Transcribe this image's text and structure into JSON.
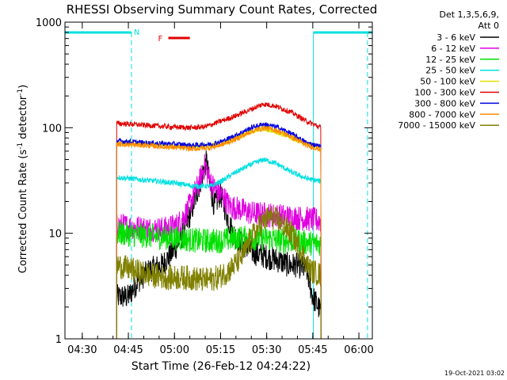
{
  "chart_data": {
    "type": "line",
    "title": "RHESSI Observing Summary Count Rates, Corrected",
    "xlabel": "Start Time (26-Feb-12 04:24:22)",
    "ylabel_main": "Corrected Count Rate (s",
    "ylabel_sup1": "-1",
    "ylabel_mid": " detector",
    "ylabel_sup2": "-1",
    "ylabel_end": ")",
    "y_scale": "log",
    "ylim": [
      1,
      1000
    ],
    "xlim_minutes": [
      264.37,
      364.37
    ],
    "x_ticks": [
      {
        "label": "04:30",
        "min": 270
      },
      {
        "label": "04:45",
        "min": 285
      },
      {
        "label": "05:00",
        "min": 300
      },
      {
        "label": "05:15",
        "min": 315
      },
      {
        "label": "05:30",
        "min": 330
      },
      {
        "label": "05:45",
        "min": 345
      },
      {
        "label": "06:00",
        "min": 360
      }
    ],
    "y_ticks": [
      {
        "label": "1",
        "value": 1
      },
      {
        "label": "10",
        "value": 10
      },
      {
        "label": "100",
        "value": 100
      },
      {
        "label": "1000",
        "value": 1000
      }
    ],
    "legend_header": [
      "Det 1,3,5,6,9,",
      "Att 0"
    ],
    "legend_position": "right",
    "annotations": {
      "night_label": "N",
      "flare_label": "F",
      "date_stamp": "19-Oct-2021 03:02",
      "night_color": "#00e0e0",
      "flare_color": "#e00000",
      "night_intervals_min": [
        [
          264.37,
          286.0
        ],
        [
          345.2,
          364.37
        ]
      ],
      "night_dashed_min": [
        286.0,
        362.8
      ],
      "flare_interval_min": [
        298.0,
        305.0
      ]
    },
    "data_interval_min": [
      281.2,
      347.7
    ],
    "series": [
      {
        "name": "3 - 6 keV",
        "color": "#000000",
        "points": [
          [
            281.2,
            2.5
          ],
          [
            285,
            2.5
          ],
          [
            288,
            3.5
          ],
          [
            292,
            4.5
          ],
          [
            296,
            5
          ],
          [
            300,
            7
          ],
          [
            303,
            10
          ],
          [
            306,
            18
          ],
          [
            308,
            28
          ],
          [
            309.5,
            40
          ],
          [
            310.5,
            48
          ],
          [
            311.5,
            28
          ],
          [
            313,
            18
          ],
          [
            315,
            24
          ],
          [
            317,
            15
          ],
          [
            319,
            10
          ],
          [
            322,
            8
          ],
          [
            326,
            6.5
          ],
          [
            330,
            6
          ],
          [
            334,
            5.5
          ],
          [
            337,
            5
          ],
          [
            340,
            5
          ],
          [
            343,
            4.5
          ],
          [
            345,
            2.5
          ],
          [
            347.7,
            1.8
          ]
        ]
      },
      {
        "name": "6 - 12 keV",
        "color": "#e000e0",
        "points": [
          [
            281.2,
            12
          ],
          [
            286,
            11.5
          ],
          [
            292,
            11
          ],
          [
            297,
            11
          ],
          [
            301,
            12
          ],
          [
            304,
            16
          ],
          [
            306,
            22
          ],
          [
            308,
            30
          ],
          [
            310,
            45
          ],
          [
            311,
            35
          ],
          [
            312.5,
            28
          ],
          [
            314,
            25
          ],
          [
            316,
            22
          ],
          [
            318,
            18
          ],
          [
            321,
            17
          ],
          [
            325,
            15.5
          ],
          [
            330,
            15
          ],
          [
            335,
            14.5
          ],
          [
            340,
            14
          ],
          [
            345,
            13.5
          ],
          [
            347.7,
            13
          ]
        ]
      },
      {
        "name": "12 - 25 keV",
        "color": "#00e000",
        "points": [
          [
            281.2,
            10
          ],
          [
            290,
            9.5
          ],
          [
            300,
            9
          ],
          [
            308,
            8.5
          ],
          [
            315,
            8.5
          ],
          [
            320,
            9
          ],
          [
            325,
            9
          ],
          [
            330,
            9
          ],
          [
            335,
            8.5
          ],
          [
            340,
            8.5
          ],
          [
            345,
            8
          ],
          [
            347.7,
            8
          ]
        ]
      },
      {
        "name": "25 - 50 keV",
        "color": "#00e0e0",
        "points": [
          [
            281.2,
            34
          ],
          [
            290,
            32
          ],
          [
            300,
            30
          ],
          [
            306,
            28
          ],
          [
            312,
            28
          ],
          [
            316,
            32
          ],
          [
            320,
            38
          ],
          [
            325,
            45
          ],
          [
            329,
            50
          ],
          [
            333,
            46
          ],
          [
            338,
            38
          ],
          [
            343,
            33
          ],
          [
            347.7,
            31
          ]
        ]
      },
      {
        "name": "50 - 100 keV",
        "color": "#e0e000",
        "points": [
          [
            281.2,
            72
          ],
          [
            290,
            70
          ],
          [
            300,
            67
          ],
          [
            306,
            66
          ],
          [
            312,
            68
          ],
          [
            316,
            72
          ],
          [
            320,
            80
          ],
          [
            325,
            92
          ],
          [
            329,
            97
          ],
          [
            333,
            92
          ],
          [
            338,
            80
          ],
          [
            343,
            70
          ],
          [
            347.7,
            66
          ]
        ]
      },
      {
        "name": "100 - 300 keV",
        "color": "#e00000",
        "points": [
          [
            281.2,
            110
          ],
          [
            286,
            108
          ],
          [
            292,
            105
          ],
          [
            298,
            102
          ],
          [
            305,
            100
          ],
          [
            310,
            102
          ],
          [
            315,
            115
          ],
          [
            320,
            130
          ],
          [
            325,
            150
          ],
          [
            329,
            168
          ],
          [
            333,
            160
          ],
          [
            338,
            140
          ],
          [
            343,
            115
          ],
          [
            347.7,
            100
          ]
        ]
      },
      {
        "name": "300 - 800 keV",
        "color": "#0000e0",
        "points": [
          [
            281.2,
            75
          ],
          [
            290,
            72
          ],
          [
            300,
            70
          ],
          [
            306,
            68
          ],
          [
            312,
            70
          ],
          [
            316,
            75
          ],
          [
            320,
            85
          ],
          [
            325,
            100
          ],
          [
            329,
            108
          ],
          [
            333,
            102
          ],
          [
            338,
            88
          ],
          [
            343,
            72
          ],
          [
            347.7,
            66
          ]
        ]
      },
      {
        "name": "800 - 7000 keV",
        "color": "#ff8c00",
        "points": [
          [
            281.2,
            70
          ],
          [
            290,
            68
          ],
          [
            300,
            65
          ],
          [
            306,
            63
          ],
          [
            312,
            65
          ],
          [
            316,
            70
          ],
          [
            320,
            78
          ],
          [
            325,
            92
          ],
          [
            329,
            100
          ],
          [
            333,
            95
          ],
          [
            338,
            82
          ],
          [
            343,
            68
          ],
          [
            347.7,
            62
          ]
        ]
      },
      {
        "name": "7000 - 15000 keV",
        "color": "#808000",
        "points": [
          [
            281.2,
            5
          ],
          [
            286,
            4.5
          ],
          [
            292,
            4
          ],
          [
            298,
            3.8
          ],
          [
            304,
            3.8
          ],
          [
            310,
            3.6
          ],
          [
            314,
            3.8
          ],
          [
            318,
            4.5
          ],
          [
            322,
            6
          ],
          [
            325,
            9
          ],
          [
            328,
            12
          ],
          [
            331,
            14.5
          ],
          [
            334,
            13
          ],
          [
            338,
            10
          ],
          [
            341,
            7
          ],
          [
            344,
            4.5
          ],
          [
            347.7,
            4
          ]
        ]
      }
    ]
  }
}
